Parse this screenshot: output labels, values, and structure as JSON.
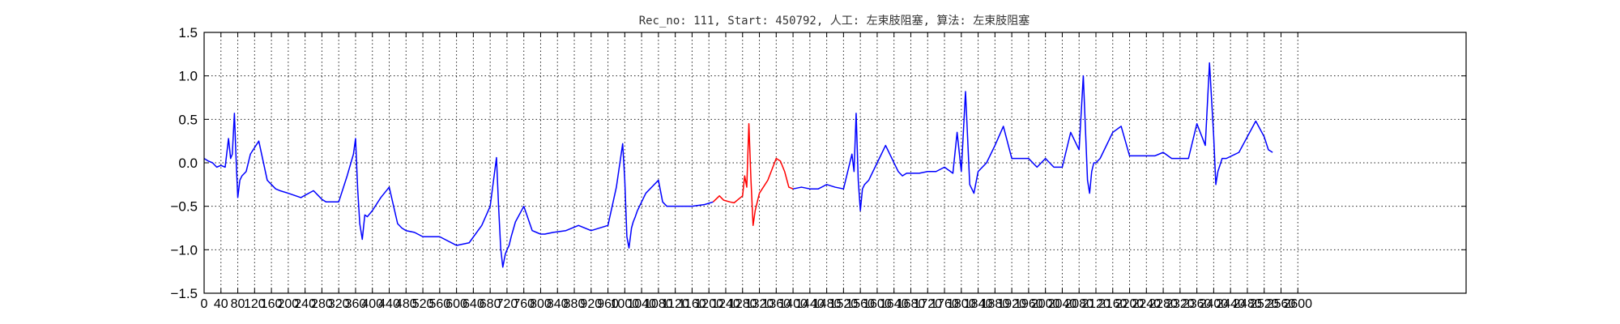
{
  "chart_data": {
    "type": "line",
    "title": "Rec_no: 111, Start: 450792, 人工: 左束肢阻塞, 算法: 左束肢阻塞",
    "xlabel": "",
    "ylabel": "",
    "xlim": [
      0,
      3000
    ],
    "ylim": [
      -1.5,
      1.5
    ],
    "yticks": [
      1.5,
      1.0,
      0.5,
      0.0,
      -0.5,
      -1.0,
      -1.5
    ],
    "ytick_labels": [
      "1.5",
      "1.0",
      "0.5",
      "0.0",
      "−0.5",
      "−1.0",
      "−1.5"
    ],
    "xticks": [
      0,
      40,
      80,
      120,
      160,
      200,
      240,
      280,
      320,
      360,
      400,
      440,
      480,
      520,
      560,
      600,
      640,
      680,
      720,
      760,
      800,
      840,
      880,
      920,
      960,
      1000,
      1040,
      1080,
      1120,
      1160,
      1200,
      1240,
      1280,
      1320,
      1360,
      1400,
      1440,
      1480,
      1520,
      1560,
      1600,
      1640,
      1680,
      1720,
      1760,
      1800,
      1840,
      1880,
      1920,
      1960,
      2000,
      2040,
      2080,
      2120,
      2160,
      2200,
      2240,
      2280,
      2320,
      2360,
      2400,
      2440,
      2480,
      2520,
      2560,
      2600
    ],
    "xtick_labels": [
      "0",
      "40",
      "80",
      "120",
      "160",
      "200",
      "240",
      "280",
      "320",
      "360",
      "400",
      "440",
      "480",
      "520",
      "560",
      "600",
      "640",
      "680",
      "720",
      "760",
      "800",
      "840",
      "880",
      "920",
      "960",
      "1000",
      "1040",
      "1080",
      "1120",
      "1160",
      "1200",
      "1240",
      "1280",
      "1320",
      "1360",
      "1400",
      "1440",
      "1480",
      "1520",
      "1560",
      "1600",
      "1640",
      "1680",
      "1720",
      "1760",
      "1800",
      "1840",
      "1880",
      "1920",
      "1960",
      "2000",
      "2040",
      "2080",
      "2120",
      "2160",
      "2200",
      "2240",
      "2280",
      "2320",
      "2360",
      "2400",
      "2440",
      "2480",
      "2520",
      "2560",
      "2600"
    ],
    "grid": true,
    "series": [
      {
        "color": "#0000ff",
        "x": [
          0,
          10,
          20,
          30,
          40,
          50,
          58,
          63,
          67,
          72,
          76,
          80,
          85,
          90,
          100,
          110,
          130,
          150,
          160,
          170,
          180,
          200,
          230,
          260,
          280,
          290,
          300,
          320,
          340,
          355,
          360,
          365,
          370,
          376,
          382,
          388,
          400,
          420,
          440,
          460,
          470,
          480,
          500,
          520,
          560,
          600,
          630,
          660,
          680,
          695,
          700,
          705,
          710,
          716,
          720,
          725,
          730,
          740,
          760,
          780,
          790,
          800,
          810,
          830,
          860,
          890,
          920,
          960,
          980,
          995,
          1000,
          1005,
          1010,
          1016,
          1020,
          1025,
          1030,
          1050,
          1080,
          1090,
          1100,
          1110,
          1130,
          1160,
          1190,
          1210
        ],
        "y": [
          0.05,
          0.02,
          0,
          -0.05,
          -0.03,
          -0.05,
          0.28,
          0.05,
          0.1,
          0.57,
          0.05,
          -0.4,
          -0.2,
          -0.15,
          -0.1,
          0.1,
          0.25,
          -0.2,
          -0.25,
          -0.3,
          -0.32,
          -0.35,
          -0.4,
          -0.32,
          -0.42,
          -0.45,
          -0.45,
          -0.45,
          -0.15,
          0.1,
          0.28,
          -0.3,
          -0.7,
          -0.88,
          -0.6,
          -0.62,
          -0.55,
          -0.4,
          -0.28,
          -0.7,
          -0.75,
          -0.78,
          -0.8,
          -0.85,
          -0.85,
          -0.95,
          -0.92,
          -0.72,
          -0.5,
          0.06,
          -0.5,
          -0.98,
          -1.2,
          -1.05,
          -1.0,
          -0.95,
          -0.85,
          -0.68,
          -0.5,
          -0.78,
          -0.8,
          -0.82,
          -0.82,
          -0.8,
          -0.78,
          -0.72,
          -0.78,
          -0.72,
          -0.28,
          0.22,
          -0.2,
          -0.85,
          -0.98,
          -0.75,
          -0.68,
          -0.62,
          -0.55,
          -0.35,
          -0.2,
          -0.45,
          -0.5,
          -0.5,
          -0.5,
          -0.5,
          -0.48,
          -0.45
        ]
      },
      {
        "color": "#ff0000",
        "x": [
          1210,
          1225,
          1235,
          1250,
          1260,
          1270,
          1280,
          1285,
          1290,
          1295,
          1300,
          1305,
          1310,
          1315,
          1320,
          1340,
          1360,
          1370,
          1380,
          1390,
          1400
        ],
        "y": [
          -0.45,
          -0.38,
          -0.43,
          -0.45,
          -0.46,
          -0.42,
          -0.38,
          -0.15,
          -0.28,
          0.45,
          -0.2,
          -0.72,
          -0.55,
          -0.45,
          -0.35,
          -0.2,
          0.05,
          0.02,
          -0.1,
          -0.28,
          -0.3
        ]
      },
      {
        "color": "#0000ff",
        "x": [
          1400,
          1420,
          1440,
          1460,
          1480,
          1500,
          1520,
          1540,
          1545,
          1550,
          1555,
          1560,
          1565,
          1570,
          1580,
          1600,
          1620,
          1650,
          1660,
          1670,
          1680,
          1700,
          1720,
          1740,
          1760,
          1780,
          1790,
          1800,
          1810,
          1820,
          1830,
          1840,
          1860,
          1880,
          1900,
          1920,
          1940,
          1960,
          1980,
          2000,
          2020,
          2040,
          2060,
          2080,
          2090,
          2100,
          2105,
          2110,
          2115,
          2120,
          2130,
          2160,
          2180,
          2200,
          2220,
          2240,
          2260,
          2280,
          2300,
          2320,
          2340,
          2360,
          2380,
          2390,
          2400,
          2405,
          2410,
          2420,
          2430,
          2460,
          2480,
          2500,
          2520,
          2530,
          2540
        ],
        "y": [
          -0.3,
          -0.28,
          -0.3,
          -0.3,
          -0.25,
          -0.28,
          -0.3,
          0.1,
          -0.1,
          0.57,
          -0.2,
          -0.55,
          -0.3,
          -0.25,
          -0.2,
          0,
          0.2,
          -0.1,
          -0.15,
          -0.12,
          -0.12,
          -0.12,
          -0.1,
          -0.1,
          -0.05,
          -0.12,
          0.35,
          -0.1,
          0.82,
          -0.25,
          -0.35,
          -0.1,
          0,
          0.2,
          0.42,
          0.05,
          0.05,
          0.05,
          -0.05,
          0.05,
          -0.05,
          -0.05,
          0.35,
          0.15,
          1.0,
          -0.2,
          -0.35,
          -0.1,
          0,
          0,
          0.05,
          0.35,
          0.42,
          0.08,
          0.08,
          0.08,
          0.08,
          0.12,
          0.05,
          0.05,
          0.05,
          0.45,
          0.2,
          1.15,
          0.3,
          -0.25,
          -0.1,
          0.05,
          0.05,
          0.12,
          0.3,
          0.48,
          0.3,
          0.15,
          0.12
        ]
      }
    ]
  }
}
